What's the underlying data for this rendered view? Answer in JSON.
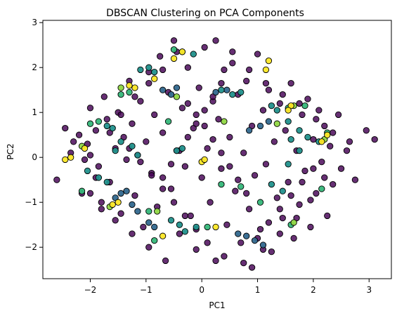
{
  "chart_data": {
    "type": "scatter",
    "title": "DBSCAN Clustering on PCA Components",
    "xlabel": "PC1",
    "ylabel": "PC2",
    "xlim": [
      -2.85,
      3.4
    ],
    "ylim": [
      -2.7,
      3.05
    ],
    "x_ticks": [
      -2,
      -1,
      0,
      1,
      2,
      3
    ],
    "y_ticks": [
      -2,
      -1,
      0,
      1,
      2,
      3
    ],
    "x_tick_labels": [
      "−2",
      "−1",
      "0",
      "1",
      "2",
      "3"
    ],
    "y_tick_labels": [
      "−2",
      "−1",
      "0",
      "1",
      "2",
      "3"
    ],
    "grid": false,
    "legend": "none",
    "colors": {
      "noise": "#440154",
      "teal": "#21918c",
      "blue": "#31688e",
      "green": "#35b779",
      "yellow": "#fde725",
      "lime": "#90d743",
      "edge": "#000000"
    },
    "series": [
      {
        "name": "",
        "color": "#440154",
        "points": [
          [
            -2.6,
            -0.5
          ],
          [
            -2.45,
            0.65
          ],
          [
            -2.35,
            0.1
          ],
          [
            -2.2,
            0.5
          ],
          [
            -2.15,
            -0.8
          ],
          [
            -2.05,
            0.3
          ],
          [
            -2.0,
            1.1
          ],
          [
            -1.9,
            0.6
          ],
          [
            -1.85,
            -0.2
          ],
          [
            -1.8,
            -1.0
          ],
          [
            -1.75,
            1.35
          ],
          [
            -1.7,
            0.85
          ],
          [
            -1.65,
            -0.55
          ],
          [
            -1.55,
            0.2
          ],
          [
            -1.5,
            1.0
          ],
          [
            -1.45,
            -1.25
          ],
          [
            -1.4,
            0.45
          ],
          [
            -1.35,
            -0.05
          ],
          [
            -1.3,
            1.7
          ],
          [
            -1.25,
            0.75
          ],
          [
            -1.2,
            -0.85
          ],
          [
            -1.15,
            0.05
          ],
          [
            -1.1,
            1.25
          ],
          [
            -1.05,
            -1.55
          ],
          [
            -1.0,
            0.35
          ],
          [
            -0.95,
            1.9
          ],
          [
            -0.9,
            -0.35
          ],
          [
            -0.85,
            0.95
          ],
          [
            -0.8,
            -1.1
          ],
          [
            -0.75,
            2.25
          ],
          [
            -0.7,
            0.55
          ],
          [
            -0.65,
            -2.3
          ],
          [
            -0.6,
            1.45
          ],
          [
            -0.55,
            -0.7
          ],
          [
            -0.5,
            2.6
          ],
          [
            -0.45,
            0.15
          ],
          [
            -0.4,
            -1.7
          ],
          [
            -0.35,
            1.1
          ],
          [
            -0.3,
            -0.2
          ],
          [
            -0.25,
            2.0
          ],
          [
            -0.2,
            -1.3
          ],
          [
            -0.15,
            0.65
          ],
          [
            -0.1,
            -2.05
          ],
          [
            -0.05,
            1.55
          ],
          [
            0.0,
            -0.45
          ],
          [
            0.05,
            2.45
          ],
          [
            0.1,
            0.2
          ],
          [
            0.15,
            -1.0
          ],
          [
            0.2,
            1.25
          ],
          [
            0.25,
            -2.3
          ],
          [
            0.3,
            0.85
          ],
          [
            0.35,
            -0.25
          ],
          [
            0.4,
            1.95
          ],
          [
            0.45,
            -1.5
          ],
          [
            0.5,
            0.45
          ],
          [
            0.55,
            2.1
          ],
          [
            0.6,
            -0.75
          ],
          [
            0.65,
            1.4
          ],
          [
            0.7,
            -1.9
          ],
          [
            0.75,
            0.1
          ],
          [
            0.8,
            1.7
          ],
          [
            0.85,
            -1.15
          ],
          [
            0.9,
            0.7
          ],
          [
            0.95,
            -0.4
          ],
          [
            1.0,
            2.3
          ],
          [
            1.05,
            -1.6
          ],
          [
            1.1,
            1.05
          ],
          [
            1.15,
            -0.15
          ],
          [
            1.2,
            1.5
          ],
          [
            1.25,
            -2.1
          ],
          [
            1.3,
            0.35
          ],
          [
            1.35,
            -0.9
          ],
          [
            1.4,
            1.2
          ],
          [
            1.45,
            -1.35
          ],
          [
            1.5,
            0.6
          ],
          [
            1.55,
            -0.55
          ],
          [
            1.6,
            1.65
          ],
          [
            1.65,
            -1.8
          ],
          [
            1.7,
            0.15
          ],
          [
            1.75,
            -1.05
          ],
          [
            1.8,
            0.95
          ],
          [
            1.85,
            -0.3
          ],
          [
            1.9,
            1.3
          ],
          [
            1.95,
            -1.55
          ],
          [
            2.0,
            0.4
          ],
          [
            2.05,
            -0.8
          ],
          [
            2.1,
            1.05
          ],
          [
            2.15,
            -0.1
          ],
          [
            2.2,
            0.7
          ],
          [
            2.25,
            -1.3
          ],
          [
            2.3,
            0.25
          ],
          [
            2.35,
            -0.6
          ],
          [
            2.45,
            0.95
          ],
          [
            2.5,
            -0.25
          ],
          [
            2.65,
            0.35
          ],
          [
            2.75,
            -0.5
          ],
          [
            2.95,
            0.6
          ],
          [
            3.1,
            0.4
          ],
          [
            -0.25,
            1.2
          ],
          [
            -0.1,
            0.95
          ],
          [
            0.05,
            0.7
          ],
          [
            0.2,
            0.4
          ],
          [
            0.35,
            0.1
          ],
          [
            0.5,
            -0.2
          ],
          [
            0.65,
            -0.5
          ],
          [
            0.8,
            -0.8
          ],
          [
            -0.7,
            -0.45
          ],
          [
            -0.55,
            -0.15
          ],
          [
            -0.4,
            0.15
          ],
          [
            -0.25,
            0.45
          ],
          [
            -0.1,
            0.75
          ],
          [
            0.05,
            1.05
          ],
          [
            0.2,
            1.35
          ],
          [
            0.35,
            1.65
          ],
          [
            -1.3,
            0.2
          ],
          [
            -1.1,
            -0.1
          ],
          [
            -0.9,
            -0.4
          ],
          [
            -0.7,
            -0.7
          ],
          [
            -0.5,
            -1.0
          ],
          [
            -0.3,
            -1.3
          ],
          [
            -0.1,
            -1.6
          ],
          [
            0.1,
            -1.9
          ],
          [
            0.4,
            -2.2
          ],
          [
            0.75,
            -2.35
          ],
          [
            1.0,
            -1.8
          ],
          [
            1.2,
            -1.45
          ],
          [
            1.4,
            -1.15
          ],
          [
            1.6,
            -0.85
          ],
          [
            1.8,
            -0.55
          ],
          [
            2.0,
            -0.25
          ],
          [
            -1.9,
            -0.45
          ],
          [
            -2.1,
            -0.05
          ],
          [
            -2.3,
            0.35
          ],
          [
            -2.0,
            0.05
          ],
          [
            -1.65,
            0.55
          ],
          [
            -1.45,
            0.95
          ],
          [
            -1.2,
            1.35
          ],
          [
            -0.95,
            1.65
          ],
          [
            -0.7,
            1.95
          ],
          [
            -0.45,
            2.35
          ],
          [
            0.25,
            2.6
          ],
          [
            0.55,
            2.35
          ],
          [
            0.85,
            1.95
          ],
          [
            1.15,
            1.65
          ],
          [
            1.45,
            1.4
          ],
          [
            1.75,
            1.2
          ],
          [
            2.05,
            0.85
          ],
          [
            2.35,
            0.55
          ],
          [
            2.6,
            0.15
          ],
          [
            2.2,
            -0.45
          ],
          [
            1.95,
            -0.95
          ],
          [
            1.7,
            -1.35
          ],
          [
            1.4,
            -1.7
          ],
          [
            1.1,
            -2.05
          ],
          [
            0.9,
            -2.45
          ],
          [
            -0.95,
            -2.0
          ],
          [
            -1.25,
            -1.7
          ],
          [
            -1.55,
            -1.4
          ],
          [
            -1.8,
            -1.15
          ],
          [
            -2.0,
            -0.8
          ]
        ]
      },
      {
        "name": "",
        "color": "#31688e",
        "points": [
          [
            -1.55,
            -0.9
          ],
          [
            -1.45,
            -0.8
          ],
          [
            -1.35,
            -0.75
          ],
          [
            -1.25,
            -1.05
          ],
          [
            -1.15,
            -1.2
          ],
          [
            -0.95,
            -1.45
          ],
          [
            -0.85,
            -1.55
          ],
          [
            0.65,
            -1.7
          ],
          [
            0.8,
            -1.75
          ],
          [
            0.95,
            -1.85
          ],
          [
            1.1,
            -1.95
          ],
          [
            -0.7,
            1.5
          ],
          [
            -0.55,
            1.4
          ],
          [
            -0.45,
            1.55
          ],
          [
            0.25,
            1.45
          ],
          [
            0.45,
            1.5
          ],
          [
            0.85,
            0.6
          ],
          [
            1.05,
            0.7
          ],
          [
            1.2,
            0.8
          ]
        ]
      },
      {
        "name": "",
        "color": "#21918c",
        "points": [
          [
            -2.05,
            -0.3
          ],
          [
            -1.85,
            -0.45
          ],
          [
            -1.7,
            -0.55
          ],
          [
            -1.55,
            0.15
          ],
          [
            -1.45,
            0.35
          ],
          [
            -1.25,
            0.25
          ],
          [
            -1.15,
            0.05
          ],
          [
            -0.45,
            0.15
          ],
          [
            -0.35,
            0.2
          ],
          [
            0.35,
            1.5
          ],
          [
            0.55,
            1.4
          ],
          [
            0.7,
            1.45
          ],
          [
            1.25,
            1.15
          ],
          [
            1.35,
            1.05
          ],
          [
            1.55,
            0.8
          ],
          [
            1.75,
            0.6
          ],
          [
            1.9,
            0.45
          ],
          [
            2.1,
            0.35
          ],
          [
            1.6,
            0.4
          ],
          [
            1.75,
            0.15
          ],
          [
            1.55,
            -0.15
          ],
          [
            1.25,
            -0.6
          ],
          [
            1.45,
            -0.75
          ],
          [
            -0.55,
            -1.4
          ],
          [
            -0.4,
            -1.5
          ],
          [
            -0.3,
            -1.65
          ],
          [
            -0.1,
            -1.55
          ],
          [
            -1.1,
            1.95
          ],
          [
            -0.95,
            2.0
          ],
          [
            -0.85,
            1.9
          ],
          [
            -0.35,
            2.35
          ],
          [
            -0.15,
            2.3
          ],
          [
            -1.7,
            0.7
          ],
          [
            -1.6,
            0.65
          ]
        ]
      },
      {
        "name": "",
        "color": "#35b779",
        "points": [
          [
            -2.15,
            -0.75
          ],
          [
            -2.0,
            0.75
          ],
          [
            -1.85,
            0.8
          ],
          [
            -1.45,
            1.4
          ],
          [
            -1.3,
            1.45
          ],
          [
            -0.95,
            -1.2
          ],
          [
            -0.85,
            -1.85
          ],
          [
            -0.5,
            2.4
          ],
          [
            0.1,
            -1.55
          ],
          [
            0.7,
            -0.65
          ],
          [
            1.05,
            -1.0
          ],
          [
            1.6,
            -1.5
          ],
          [
            2.15,
            -0.7
          ],
          [
            2.25,
            0.55
          ],
          [
            1.85,
            1.15
          ],
          [
            1.55,
            1.1
          ],
          [
            0.35,
            -0.6
          ],
          [
            -0.6,
            0.8
          ]
        ]
      },
      {
        "name": "",
        "color": "#90d743",
        "points": [
          [
            -2.15,
            0.25
          ],
          [
            -1.65,
            -1.1
          ],
          [
            -1.45,
            1.55
          ],
          [
            -0.8,
            -1.2
          ],
          [
            -0.45,
            1.35
          ],
          [
            0.4,
            0.8
          ],
          [
            1.35,
            0.75
          ],
          [
            1.65,
            1.15
          ],
          [
            2.2,
            0.4
          ],
          [
            1.65,
            -1.45
          ]
        ]
      },
      {
        "name": "",
        "color": "#fde725",
        "points": [
          [
            -2.45,
            -0.05
          ],
          [
            -2.35,
            0.0
          ],
          [
            -2.1,
            0.2
          ],
          [
            -1.6,
            -1.05
          ],
          [
            -1.5,
            -1.0
          ],
          [
            -1.3,
            1.6
          ],
          [
            -1.2,
            1.55
          ],
          [
            -0.85,
            1.75
          ],
          [
            -0.7,
            -1.75
          ],
          [
            -0.5,
            2.2
          ],
          [
            -0.35,
            2.35
          ],
          [
            0.0,
            -0.1
          ],
          [
            0.05,
            -0.05
          ],
          [
            0.25,
            -1.55
          ],
          [
            1.15,
            1.95
          ],
          [
            1.2,
            2.15
          ],
          [
            1.6,
            1.15
          ],
          [
            1.55,
            1.05
          ],
          [
            2.15,
            0.35
          ],
          [
            2.25,
            0.5
          ]
        ]
      }
    ]
  }
}
